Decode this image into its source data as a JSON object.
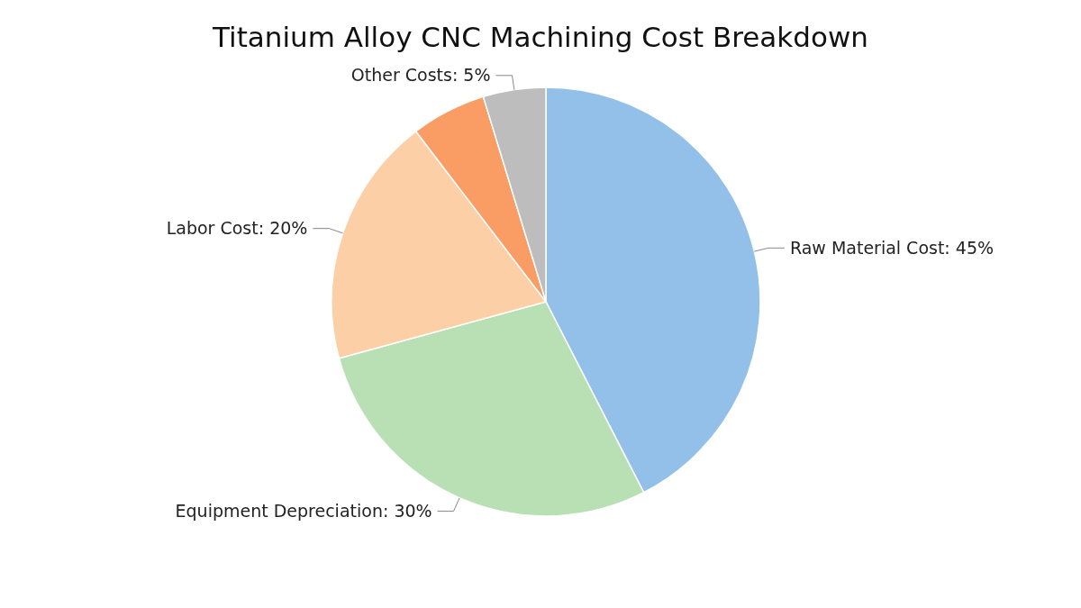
{
  "chart_data": {
    "type": "pie",
    "title": "Titanium Alloy CNC Machining Cost Breakdown",
    "categories": [
      "Raw Material Cost",
      "Equipment Depreciation",
      "Labor Cost",
      null,
      "Other Costs"
    ],
    "values": [
      45,
      30,
      20,
      6,
      5
    ],
    "value_labels": [
      "45%",
      "30%",
      "20%",
      null,
      "5%"
    ],
    "colors": [
      "#92c0e8",
      "#b9e0b4",
      "#fdcfa6",
      "#f99d64",
      "#bdbdbd"
    ],
    "legend": false
  }
}
